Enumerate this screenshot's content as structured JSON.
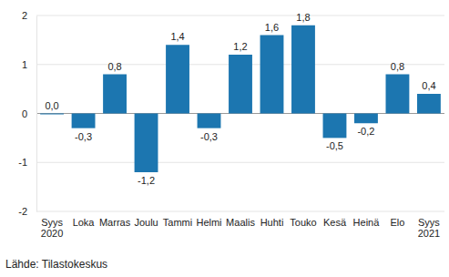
{
  "chart_data": {
    "type": "bar",
    "categories": [
      "Syys 2020",
      "Loka",
      "Marras",
      "Joulu",
      "Tammi",
      "Helmi",
      "Maalis",
      "Huhti",
      "Touko",
      "Kesä",
      "Heinä",
      "Elo",
      "Syys 2021"
    ],
    "values": [
      0.0,
      -0.3,
      0.8,
      -1.2,
      1.4,
      -0.3,
      1.2,
      1.6,
      1.8,
      -0.5,
      -0.2,
      0.8,
      0.4
    ],
    "value_labels": [
      "0,0",
      "-0,3",
      "0,8",
      "-1,2",
      "1,4",
      "-0,3",
      "1,2",
      "1,6",
      "1,8",
      "-0,5",
      "-0,2",
      "0,8",
      "0,4"
    ],
    "data_labels": true,
    "color": "#1c76b0",
    "ylim": [
      -2,
      2
    ],
    "yticks": [
      -2,
      -1,
      0,
      1,
      2
    ],
    "grid": true,
    "source": "Lähde: Tilastokeskus"
  }
}
